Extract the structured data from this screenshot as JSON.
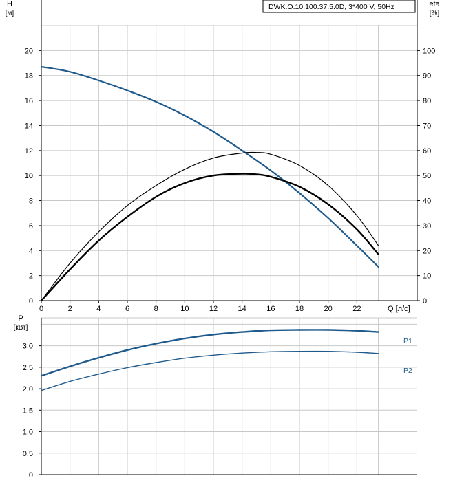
{
  "pump_label": "DWK.O.10.100.37.5.0D, 3*400 V, 50Hz",
  "colors": {
    "head": "#1f5a8c",
    "power": "#1f5a8c",
    "eta": "#000000",
    "grid": "#c8c8c8"
  },
  "chart_data": [
    {
      "type": "line",
      "x_unit_label": "Q [л/с]",
      "left_axis_label": [
        "H",
        "[м]"
      ],
      "right_axis_label": [
        "eta",
        "[%]"
      ],
      "xlim": [
        0,
        24
      ],
      "ylim_left": [
        0,
        22
      ],
      "ylim_right": [
        0,
        110
      ],
      "x_ticks": [
        0,
        2,
        4,
        6,
        8,
        10,
        12,
        14,
        16,
        18,
        20,
        22
      ],
      "y_ticks_left": [
        0,
        2,
        4,
        6,
        8,
        10,
        12,
        14,
        16,
        18,
        20
      ],
      "y_ticks_right": [
        0,
        10,
        20,
        30,
        40,
        50,
        60,
        70,
        80,
        90,
        100
      ],
      "series": [
        {
          "axis": "left",
          "color": "#1f5a8c",
          "width": 2.2,
          "x": [
            0,
            2,
            4,
            6,
            8,
            10,
            12,
            14,
            16,
            18,
            20,
            22,
            23.5
          ],
          "y": [
            18.7,
            18.3,
            17.6,
            16.8,
            15.9,
            14.8,
            13.5,
            12.0,
            10.4,
            8.6,
            6.6,
            4.4,
            2.7
          ]
        },
        {
          "axis": "right",
          "color": "#000000",
          "width": 1.2,
          "x": [
            0,
            2,
            4,
            6,
            8,
            10,
            12,
            14,
            15,
            16,
            18,
            20,
            22,
            23.5
          ],
          "y": [
            0,
            15,
            27.5,
            38,
            46,
            52.5,
            57,
            59,
            59.2,
            58.5,
            54,
            46,
            34,
            22
          ]
        },
        {
          "axis": "right",
          "color": "#000000",
          "width": 2.4,
          "x": [
            0,
            2,
            4,
            6,
            8,
            10,
            12,
            14,
            15,
            16,
            18,
            20,
            22,
            23.5
          ],
          "y": [
            0,
            12.5,
            24,
            33.5,
            41.5,
            47,
            50,
            50.7,
            50.5,
            49.5,
            45.5,
            38.5,
            28.5,
            18.5
          ]
        }
      ]
    },
    {
      "type": "line",
      "left_axis_label": [
        "P",
        "[кВт]"
      ],
      "xlim": [
        0,
        24
      ],
      "ylim": [
        0,
        3.65
      ],
      "y_ticks": [
        0,
        0.5,
        1.0,
        1.5,
        2.0,
        2.5,
        3.0
      ],
      "y_tick_labels": [
        "0",
        "0,5",
        "1,0",
        "1,5",
        "2,0",
        "2,5",
        "3,0"
      ],
      "series": [
        {
          "name": "P1",
          "color": "#1f5a8c",
          "width": 2.4,
          "x": [
            0,
            2,
            4,
            6,
            8,
            10,
            12,
            14,
            16,
            18,
            20,
            22,
            23.5
          ],
          "y": [
            2.3,
            2.52,
            2.72,
            2.9,
            3.05,
            3.17,
            3.26,
            3.32,
            3.36,
            3.37,
            3.37,
            3.35,
            3.32
          ]
        },
        {
          "name": "P2",
          "color": "#1f5a8c",
          "width": 1.4,
          "x": [
            0,
            2,
            4,
            6,
            8,
            10,
            12,
            14,
            16,
            18,
            20,
            22,
            23.5
          ],
          "y": [
            1.96,
            2.17,
            2.34,
            2.49,
            2.61,
            2.71,
            2.78,
            2.83,
            2.86,
            2.87,
            2.87,
            2.85,
            2.82
          ]
        }
      ]
    }
  ]
}
